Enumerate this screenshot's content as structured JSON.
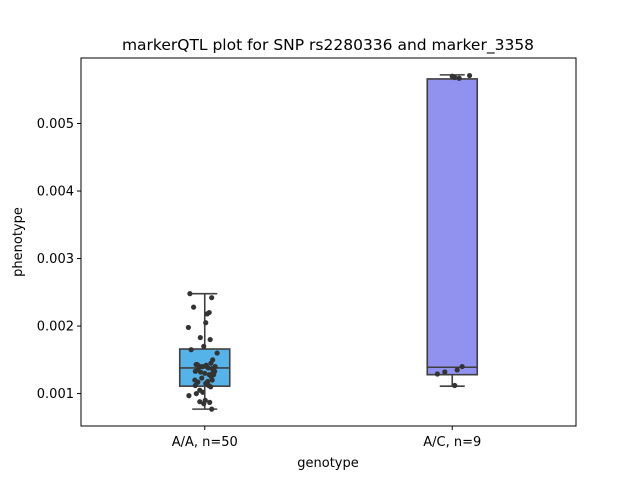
{
  "chart_data": {
    "type": "box",
    "title": "markerQTL plot for SNP rs2280336 and marker_3358",
    "xlabel": "genotype",
    "ylabel": "phenotype",
    "categories": [
      "A/A, n=50",
      "A/C, n=9"
    ],
    "ylim": [
      0.00052,
      0.00597
    ],
    "yticks": [
      0.001,
      0.002,
      0.003,
      0.004,
      0.005
    ],
    "ytick_labels": [
      "0.001",
      "0.002",
      "0.003",
      "0.004",
      "0.005"
    ],
    "grid": false,
    "boxes": [
      {
        "category": "A/A, n=50",
        "color": "#56b3e9",
        "whisker_low": 0.00077,
        "q1": 0.00111,
        "median": 0.00138,
        "q3": 0.00166,
        "whisker_high": 0.00248,
        "points": [
          [
            -0.06,
            0.00248
          ],
          [
            0.028,
            0.00242
          ],
          [
            0.018,
            0.0022
          ],
          [
            0.01,
            0.00218
          ],
          [
            -0.045,
            0.00228
          ],
          [
            -0.066,
            0.00198
          ],
          [
            0.004,
            0.00205
          ],
          [
            -0.018,
            0.00183
          ],
          [
            0.022,
            0.0018
          ],
          [
            -0.055,
            0.00165
          ],
          [
            0.05,
            0.0016
          ],
          [
            -0.004,
            0.0017
          ],
          [
            0.032,
            0.0015
          ],
          [
            0.025,
            0.00145
          ],
          [
            -0.03,
            0.00143
          ],
          [
            0.042,
            0.0014
          ],
          [
            -0.02,
            0.0014
          ],
          [
            0.035,
            0.00135
          ],
          [
            -0.038,
            0.00133
          ],
          [
            0.0,
            0.0013
          ],
          [
            0.018,
            0.00128
          ],
          [
            0.026,
            0.00125
          ],
          [
            -0.012,
            0.00123
          ],
          [
            0.03,
            0.0012
          ],
          [
            -0.028,
            0.00117
          ],
          [
            0.004,
            0.00115
          ],
          [
            0.016,
            0.00112
          ],
          [
            -0.038,
            0.00112
          ],
          [
            -0.02,
            0.00105
          ],
          [
            -0.034,
            0.001
          ],
          [
            -0.064,
            0.00097
          ],
          [
            0.002,
            0.0009
          ],
          [
            -0.02,
            0.00088
          ],
          [
            0.02,
            0.00087
          ],
          [
            -0.004,
            0.00085
          ],
          [
            0.028,
            0.00077
          ],
          [
            -0.035,
            0.00143
          ],
          [
            0.012,
            0.00118
          ],
          [
            0.032,
            0.0013
          ],
          [
            -0.01,
            0.0014
          ],
          [
            0.03,
            0.00137
          ],
          [
            0.036,
            0.00128
          ],
          [
            -0.017,
            0.00132
          ],
          [
            -0.008,
            0.00102
          ],
          [
            0.014,
            0.00138
          ],
          [
            -0.04,
            0.0012
          ],
          [
            0.024,
            0.0011
          ],
          [
            0.006,
            0.00142
          ],
          [
            -0.028,
            0.00135
          ],
          [
            0.04,
            0.00133
          ]
        ]
      },
      {
        "category": "A/C, n=9",
        "color": "#9191ef",
        "whisker_low": 0.00111,
        "q1": 0.00128,
        "median": 0.00139,
        "q3": 0.00566,
        "whisker_high": 0.00572,
        "points": [
          [
            0.07,
            0.00571
          ],
          [
            0.028,
            0.00567
          ],
          [
            -0.06,
            0.00129
          ],
          [
            0.04,
            0.0014
          ],
          [
            0.01,
            0.00112
          ],
          [
            0.01,
            0.00568
          ],
          [
            -0.03,
            0.00132
          ],
          [
            0.02,
            0.00135
          ],
          [
            0.0,
            0.0057
          ]
        ]
      }
    ]
  }
}
